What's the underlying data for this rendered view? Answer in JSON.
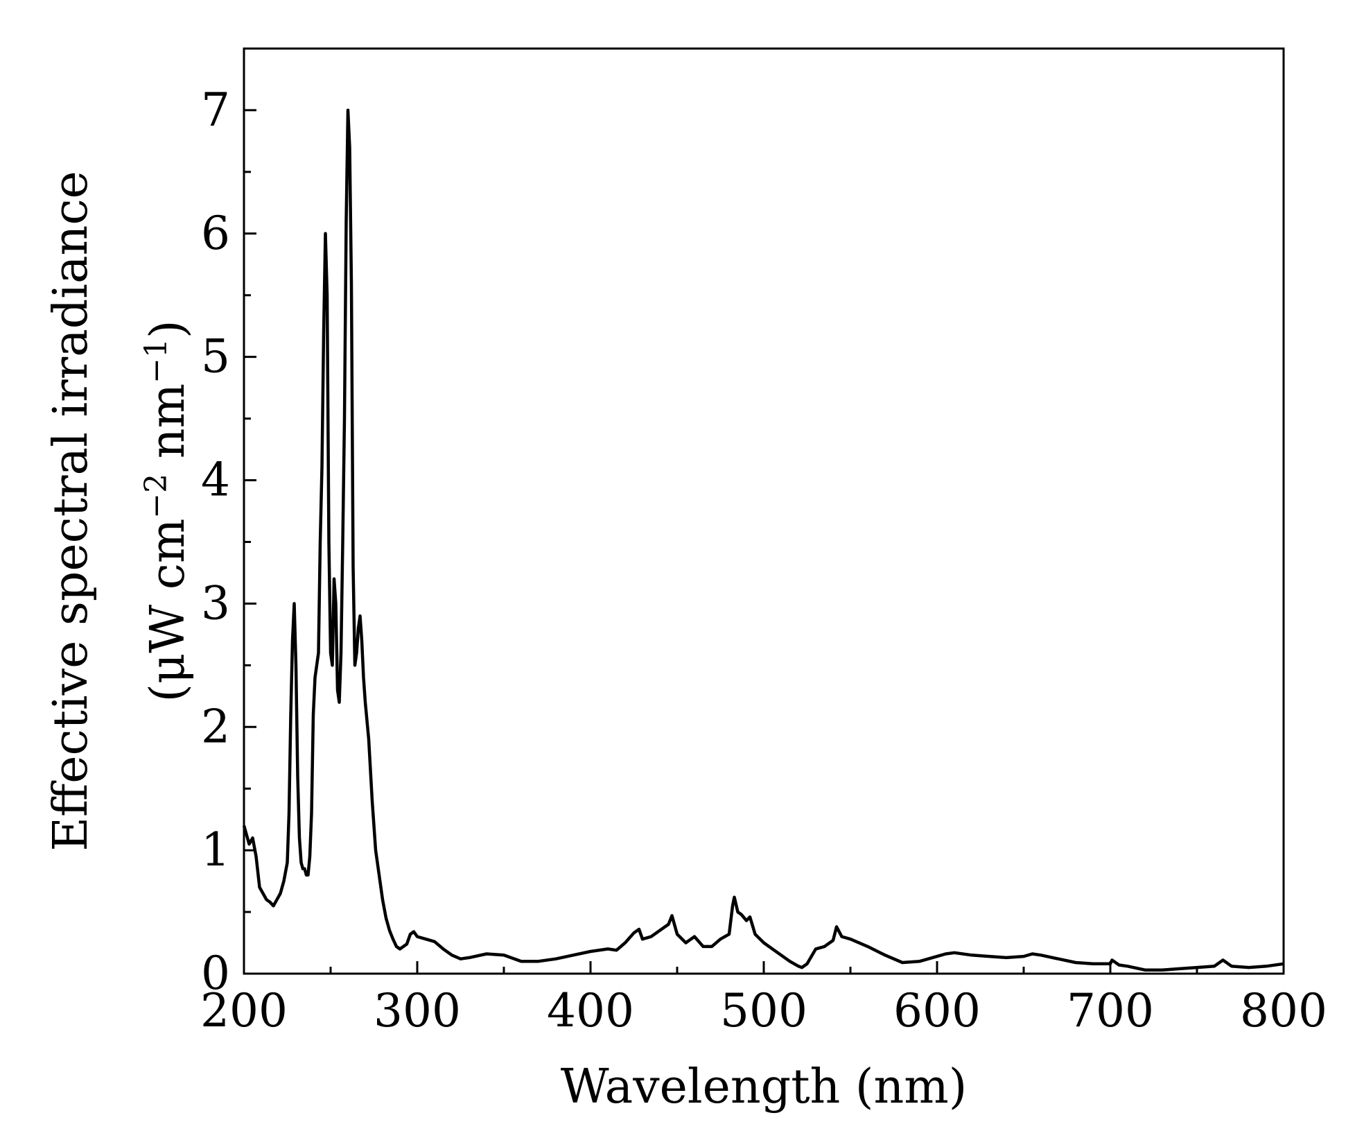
{
  "chart_data": {
    "type": "line",
    "title": "",
    "xlabel": "Wavelength (nm)",
    "ylabel": {
      "line1": "Effective spectral irradiance",
      "line2_prefix": "(μW cm",
      "line2_sup1": "−2",
      "line2_mid": " nm",
      "line2_sup2": "−1",
      "line2_suffix": ")"
    },
    "xlim": [
      200,
      800
    ],
    "ylim": [
      0,
      7.5
    ],
    "xticks": [
      200,
      300,
      400,
      500,
      600,
      700,
      800
    ],
    "yticks": [
      0,
      1,
      2,
      3,
      4,
      5,
      6,
      7
    ],
    "grid": false,
    "legend": "none",
    "line_color": "#000000",
    "series": [
      {
        "x": [
          200,
          201,
          203,
          205,
          207,
          209,
          211,
          213,
          215,
          217,
          219,
          221,
          223,
          225,
          226,
          227,
          228,
          229,
          230,
          231,
          232,
          233,
          234,
          235,
          236,
          237,
          238,
          239,
          240,
          241,
          242,
          243,
          244,
          245,
          246,
          247,
          248,
          249,
          250,
          251,
          252,
          253,
          254,
          255,
          256,
          257,
          258,
          259,
          260,
          261,
          262,
          263,
          264,
          265,
          266,
          267,
          268,
          269,
          270,
          272,
          274,
          276,
          278,
          280,
          282,
          284,
          286,
          288,
          290,
          292,
          294,
          296,
          298,
          300,
          305,
          310,
          315,
          320,
          325,
          330,
          340,
          350,
          360,
          370,
          380,
          390,
          400,
          410,
          415,
          420,
          425,
          428,
          430,
          435,
          440,
          445,
          447,
          450,
          455,
          460,
          465,
          470,
          475,
          480,
          482,
          483,
          485,
          487,
          490,
          492,
          495,
          500,
          505,
          510,
          515,
          520,
          522,
          525,
          530,
          535,
          540,
          542,
          545,
          550,
          560,
          570,
          580,
          590,
          600,
          605,
          610,
          620,
          630,
          640,
          650,
          655,
          660,
          670,
          680,
          690,
          700,
          701,
          705,
          710,
          720,
          730,
          740,
          750,
          760,
          765,
          770,
          780,
          790,
          800
        ],
        "y": [
          1.2,
          1.15,
          1.05,
          1.1,
          0.95,
          0.7,
          0.65,
          0.6,
          0.58,
          0.55,
          0.6,
          0.65,
          0.75,
          0.9,
          1.3,
          2.1,
          2.7,
          3.0,
          2.5,
          1.6,
          1.1,
          0.9,
          0.85,
          0.85,
          0.8,
          0.8,
          0.95,
          1.3,
          2.1,
          2.4,
          2.5,
          2.6,
          3.5,
          4.1,
          5.2,
          6.0,
          5.5,
          3.5,
          2.6,
          2.5,
          3.2,
          3.0,
          2.3,
          2.2,
          2.6,
          3.5,
          4.5,
          6.1,
          7.0,
          6.7,
          5.6,
          3.3,
          2.5,
          2.6,
          2.8,
          2.9,
          2.7,
          2.4,
          2.2,
          1.9,
          1.4,
          1.0,
          0.8,
          0.6,
          0.45,
          0.35,
          0.28,
          0.22,
          0.2,
          0.22,
          0.24,
          0.32,
          0.34,
          0.3,
          0.28,
          0.26,
          0.2,
          0.15,
          0.12,
          0.13,
          0.16,
          0.15,
          0.1,
          0.1,
          0.12,
          0.15,
          0.18,
          0.2,
          0.19,
          0.25,
          0.33,
          0.36,
          0.28,
          0.3,
          0.35,
          0.4,
          0.47,
          0.32,
          0.25,
          0.3,
          0.22,
          0.22,
          0.28,
          0.32,
          0.55,
          0.62,
          0.5,
          0.48,
          0.43,
          0.46,
          0.32,
          0.25,
          0.2,
          0.15,
          0.1,
          0.06,
          0.05,
          0.08,
          0.2,
          0.22,
          0.27,
          0.38,
          0.3,
          0.28,
          0.22,
          0.15,
          0.09,
          0.1,
          0.14,
          0.16,
          0.17,
          0.15,
          0.14,
          0.13,
          0.14,
          0.16,
          0.15,
          0.12,
          0.09,
          0.08,
          0.08,
          0.11,
          0.07,
          0.06,
          0.03,
          0.03,
          0.04,
          0.05,
          0.06,
          0.11,
          0.06,
          0.05,
          0.06,
          0.08
        ]
      }
    ]
  }
}
